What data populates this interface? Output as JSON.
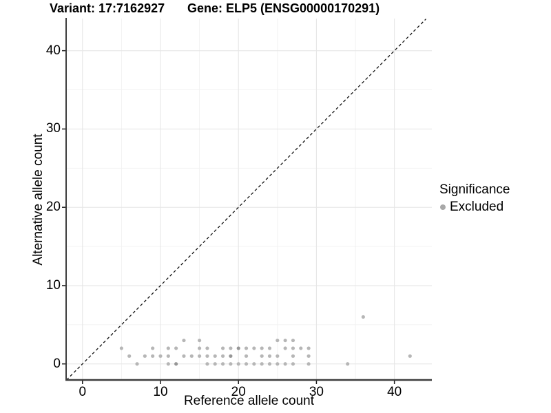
{
  "chart_data": {
    "type": "scatter",
    "title_left": "Variant: 17:7162927",
    "title_right": "Gene: ELP5 (ENSG00000170291)",
    "xlabel": "Reference allele count",
    "ylabel": "Alternative allele count",
    "x_ticks": [
      0,
      10,
      20,
      30,
      40
    ],
    "y_ticks": [
      0,
      10,
      20,
      30,
      40
    ],
    "x_minor": [
      5,
      15,
      25,
      35
    ],
    "y_minor": [
      5,
      15,
      25,
      35
    ],
    "xlim": [
      -2.1,
      44.8
    ],
    "ylim": [
      -2.05,
      44.1
    ],
    "grid": true,
    "identity_line": {
      "style": "dashed",
      "from": -2.05,
      "to": 44.05
    },
    "legend": {
      "title": "Significance",
      "position": "right",
      "items": [
        {
          "label": "Excluded",
          "color": "#a8a8a8"
        }
      ]
    },
    "series": [
      {
        "name": "Excluded",
        "points": [
          [
            5,
            2
          ],
          [
            6,
            1
          ],
          [
            7,
            0
          ],
          [
            8,
            1
          ],
          [
            9,
            1
          ],
          [
            9,
            2
          ],
          [
            10,
            1
          ],
          [
            11,
            0
          ],
          [
            11,
            1
          ],
          [
            11,
            2
          ],
          [
            12,
            0,
            2
          ],
          [
            12,
            2
          ],
          [
            13,
            1
          ],
          [
            13,
            3
          ],
          [
            14,
            1
          ],
          [
            15,
            1
          ],
          [
            15,
            2
          ],
          [
            15,
            3
          ],
          [
            16,
            0
          ],
          [
            16,
            1
          ],
          [
            16,
            2
          ],
          [
            17,
            0
          ],
          [
            17,
            1
          ],
          [
            18,
            0
          ],
          [
            18,
            1
          ],
          [
            18,
            2
          ],
          [
            19,
            0
          ],
          [
            19,
            1,
            2
          ],
          [
            19,
            2
          ],
          [
            20,
            0
          ],
          [
            20,
            2,
            2
          ],
          [
            21,
            0
          ],
          [
            21,
            1
          ],
          [
            21,
            2
          ],
          [
            22,
            0
          ],
          [
            22,
            2
          ],
          [
            23,
            0
          ],
          [
            23,
            1
          ],
          [
            23,
            2
          ],
          [
            24,
            0
          ],
          [
            24,
            1
          ],
          [
            24,
            2
          ],
          [
            25,
            0
          ],
          [
            25,
            1
          ],
          [
            25,
            3
          ],
          [
            26,
            0
          ],
          [
            26,
            2
          ],
          [
            26,
            3
          ],
          [
            27,
            0
          ],
          [
            27,
            1
          ],
          [
            27,
            2
          ],
          [
            27,
            3
          ],
          [
            28,
            2
          ],
          [
            29,
            0
          ],
          [
            29,
            1
          ],
          [
            29,
            2
          ],
          [
            34,
            0
          ],
          [
            36,
            6
          ],
          [
            42,
            1
          ]
        ]
      }
    ]
  },
  "colors": {
    "point": "#b6b6b6",
    "point_overlap": "#969696",
    "grid_major": "#e6e6e6",
    "grid_minor": "#f1f1f1",
    "axis": "#3d3d3d",
    "tick": "#1a1a1a",
    "identity_line": "#111111",
    "legend_point": "#a8a8a8",
    "background": "#ffffff"
  }
}
